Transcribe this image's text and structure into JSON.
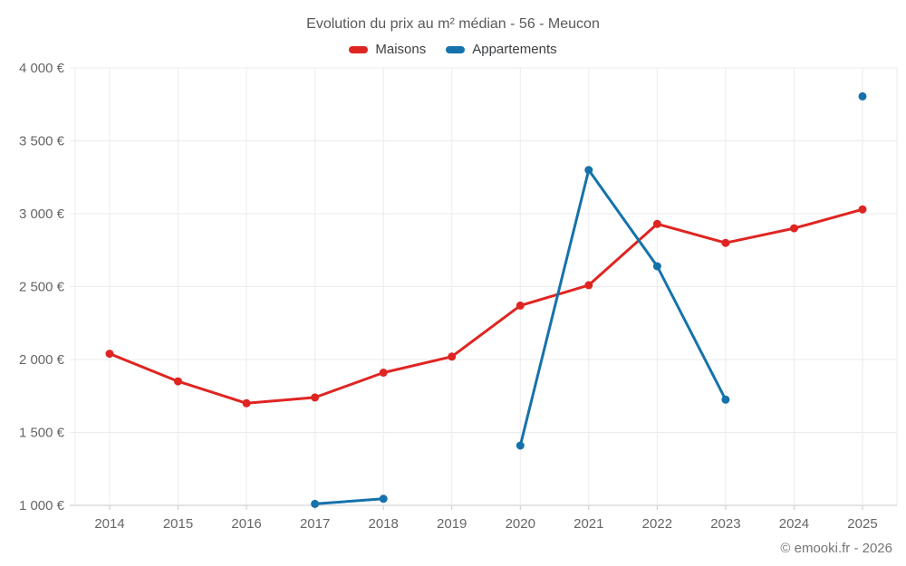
{
  "chart_data": {
    "type": "line",
    "title": "Evolution du prix au m² médian - 56 - Meucon",
    "xlabel": "",
    "ylabel": "",
    "x_categories": [
      "2014",
      "2015",
      "2016",
      "2017",
      "2018",
      "2019",
      "2020",
      "2021",
      "2022",
      "2023",
      "2024",
      "2025"
    ],
    "series": [
      {
        "name": "Maisons",
        "color": "#df2522",
        "values": [
          2040,
          1850,
          1700,
          1740,
          1910,
          2020,
          2370,
          2510,
          2930,
          2800,
          2900,
          3030
        ]
      },
      {
        "name": "Appartements",
        "color": "#1572ab",
        "values": [
          null,
          null,
          null,
          1010,
          1045,
          null,
          1410,
          3300,
          2640,
          1725,
          null,
          3805
        ]
      }
    ],
    "ylim": [
      1000,
      4000
    ],
    "ytick_step": 500,
    "ytick_labels": [
      "1 000 €",
      "1 500 €",
      "2 000 €",
      "2 500 €",
      "3 000 €",
      "3 500 €",
      "4 000 €"
    ],
    "grid": true,
    "legend_position": "top",
    "attribution": "© emooki.fr - 2026"
  },
  "colors": {
    "grid_line": "#ebebeb",
    "axis_line": "#c9c9c9",
    "axis_text": "#666666",
    "title_text": "#58595b"
  }
}
